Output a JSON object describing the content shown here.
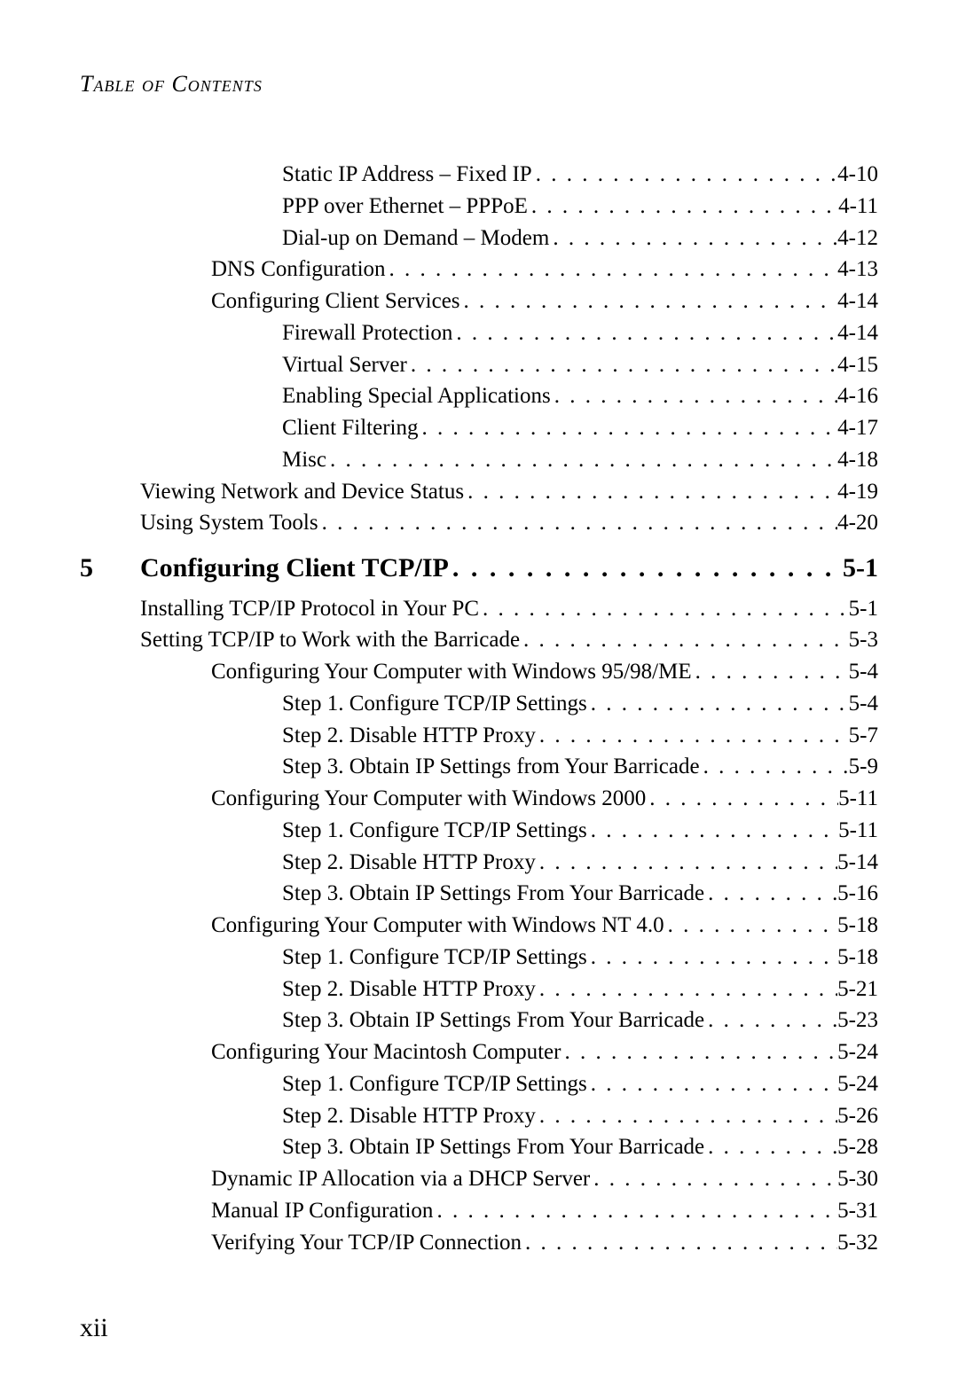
{
  "header": "Table of Contents",
  "page_number": "xii",
  "entries": [
    {
      "level": 2,
      "label": "Static IP Address – Fixed IP",
      "page": "4-10"
    },
    {
      "level": 2,
      "label": "PPP over Ethernet – PPPoE",
      "page": "4-11"
    },
    {
      "level": 2,
      "label": "Dial-up on Demand – Modem",
      "page": "4-12"
    },
    {
      "level": 1,
      "label": "DNS Configuration",
      "page": "4-13"
    },
    {
      "level": 1,
      "label": "Configuring Client Services",
      "page": "4-14"
    },
    {
      "level": 2,
      "label": "Firewall Protection",
      "page": "4-14"
    },
    {
      "level": 2,
      "label": "Virtual Server",
      "page": "4-15"
    },
    {
      "level": 2,
      "label": "Enabling Special Applications",
      "page": "4-16"
    },
    {
      "level": 2,
      "label": "Client Filtering",
      "page": "4-17"
    },
    {
      "level": 2,
      "label": "Misc",
      "page": "4-18"
    },
    {
      "level": 0,
      "label": "Viewing Network and Device Status",
      "page": "4-19"
    },
    {
      "level": 0,
      "label": "Using System Tools",
      "page": "4-20"
    },
    {
      "level": "chapter",
      "num": "5",
      "label": "Configuring Client TCP/IP",
      "page": "5-1"
    },
    {
      "level": 0,
      "label": "Installing TCP/IP Protocol in Your PC",
      "page": "5-1"
    },
    {
      "level": 0,
      "label": "Setting TCP/IP to Work with the Barricade",
      "page": "5-3"
    },
    {
      "level": 1,
      "label": "Configuring Your Computer with Windows 95/98/ME",
      "page": "5-4"
    },
    {
      "level": 2,
      "label": "Step 1. Configure TCP/IP Settings",
      "page": "5-4"
    },
    {
      "level": 2,
      "label": "Step 2. Disable HTTP Proxy",
      "page": "5-7"
    },
    {
      "level": 2,
      "label": "Step 3. Obtain IP Settings from Your Barricade",
      "page": "5-9"
    },
    {
      "level": 1,
      "label": "Configuring Your Computer with Windows 2000",
      "page": "5-11"
    },
    {
      "level": 2,
      "label": "Step 1. Configure TCP/IP Settings",
      "page": "5-11"
    },
    {
      "level": 2,
      "label": "Step 2. Disable HTTP Proxy",
      "page": "5-14"
    },
    {
      "level": 2,
      "label": "Step 3. Obtain IP Settings From Your Barricade",
      "page": "5-16"
    },
    {
      "level": 1,
      "label": "Configuring Your Computer with Windows NT 4.0",
      "page": "5-18"
    },
    {
      "level": 2,
      "label": "Step 1. Configure TCP/IP Settings",
      "page": "5-18"
    },
    {
      "level": 2,
      "label": "Step 2. Disable HTTP Proxy",
      "page": "5-21"
    },
    {
      "level": 2,
      "label": "Step 3. Obtain IP Settings From Your Barricade",
      "page": "5-23"
    },
    {
      "level": 1,
      "label": "Configuring Your Macintosh Computer",
      "page": "5-24"
    },
    {
      "level": 2,
      "label": "Step 1. Configure TCP/IP Settings",
      "page": "5-24"
    },
    {
      "level": 2,
      "label": "Step 2. Disable HTTP Proxy",
      "page": "5-26"
    },
    {
      "level": 2,
      "label": "Step 3. Obtain IP Settings From Your Barricade",
      "page": "5-28"
    },
    {
      "level": 1,
      "label": "Dynamic IP Allocation via a DHCP Server",
      "page": "5-30"
    },
    {
      "level": 1,
      "label": "Manual IP Configuration",
      "page": "5-31"
    },
    {
      "level": 1,
      "label": "Verifying Your TCP/IP Connection",
      "page": "5-32"
    }
  ]
}
